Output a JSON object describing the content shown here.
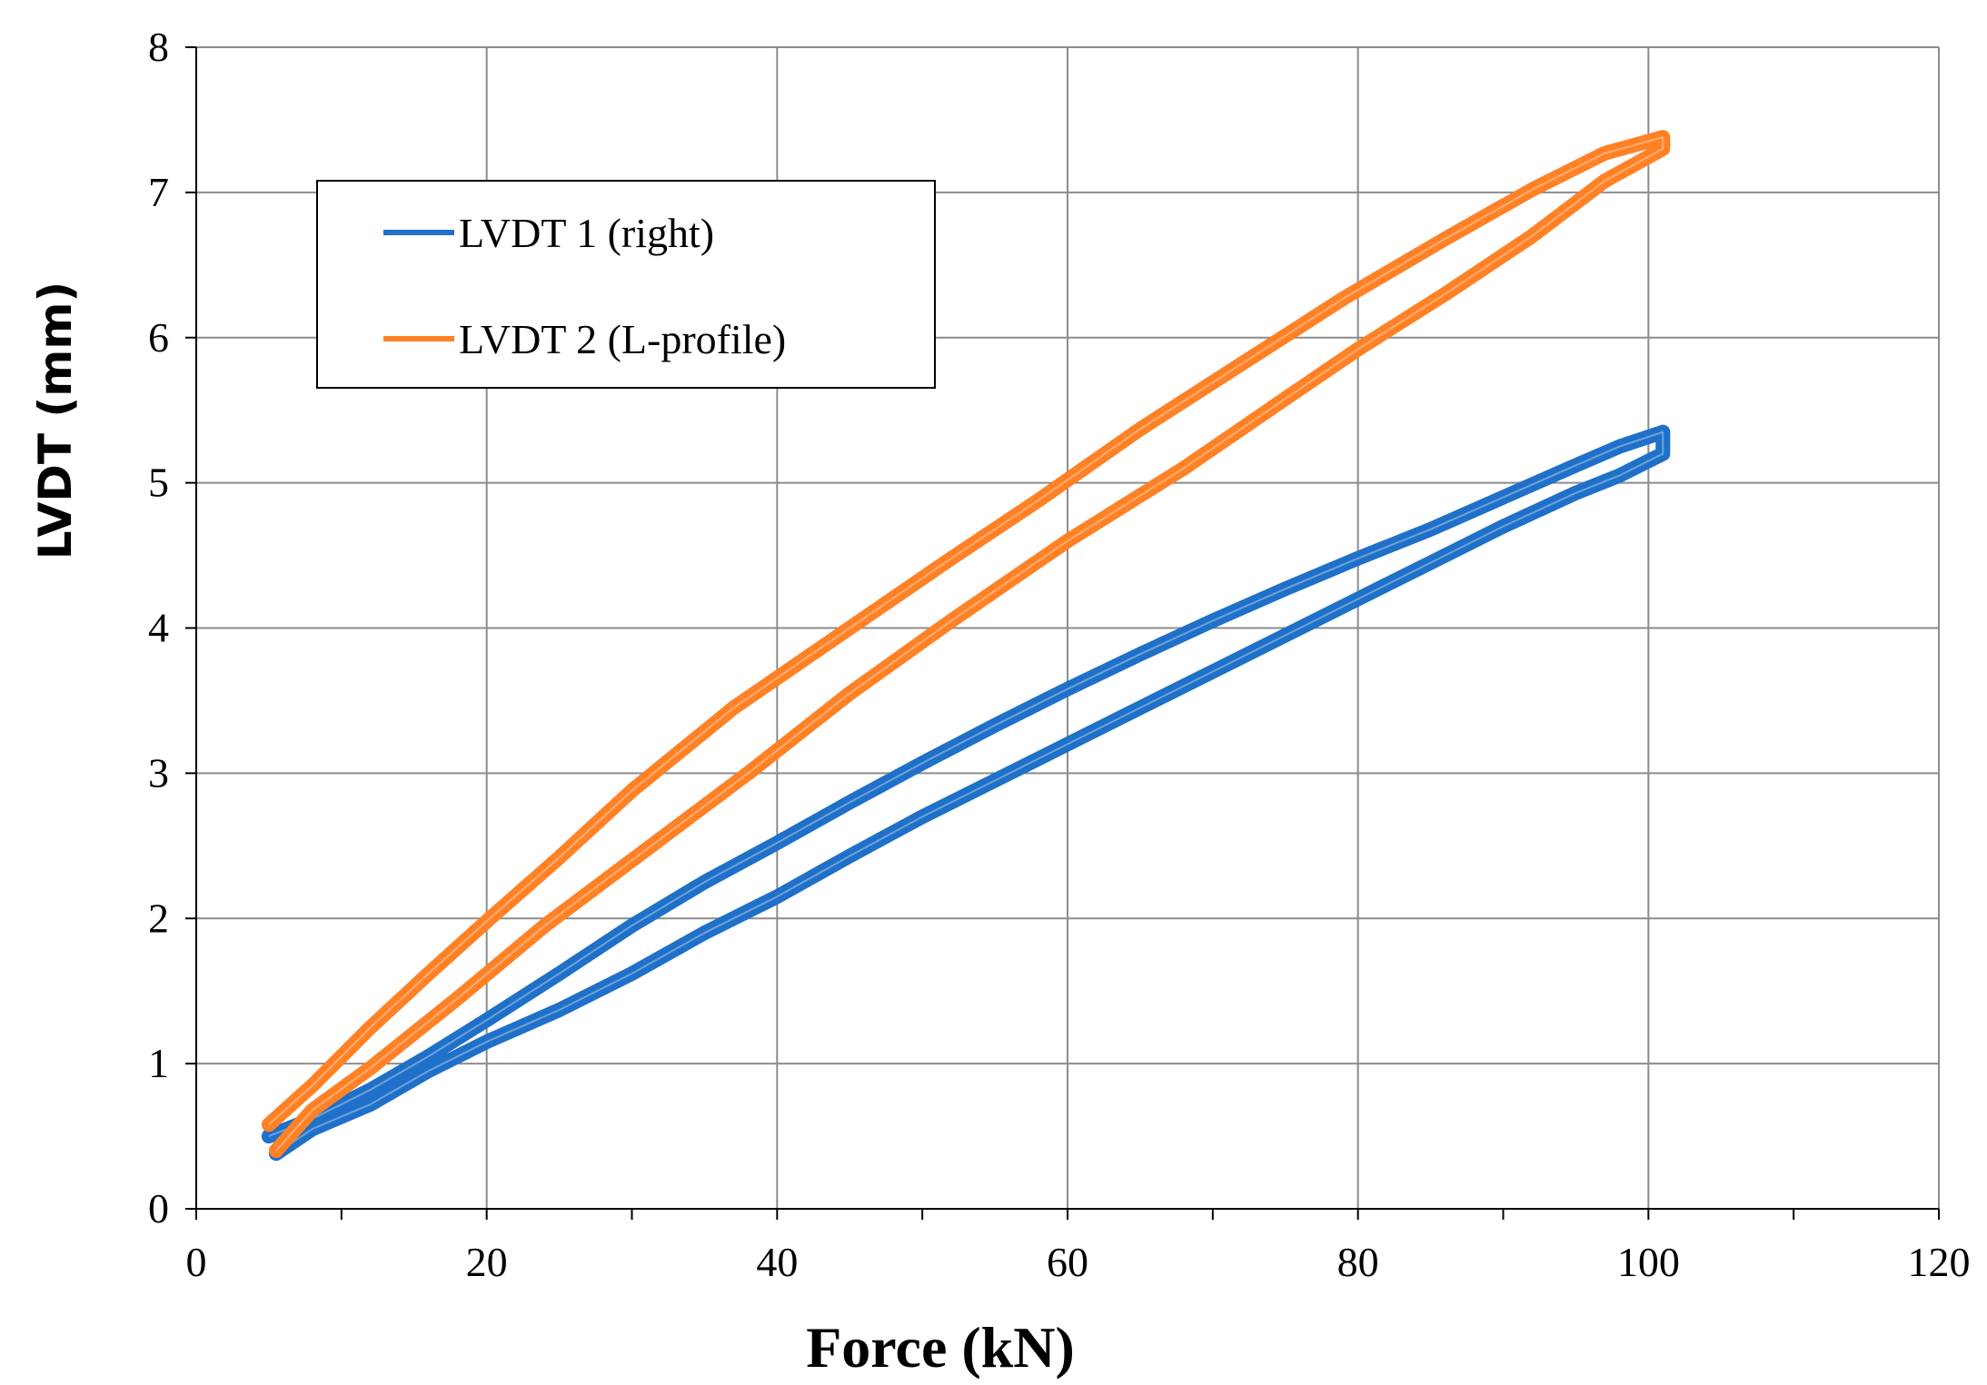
{
  "chart_data": {
    "type": "line",
    "title": "",
    "xlabel": "Force (kN)",
    "ylabel": "LVDT  (mm)",
    "xlim": [
      0,
      120
    ],
    "ylim": [
      0,
      8
    ],
    "xticks": [
      0,
      20,
      40,
      60,
      80,
      100,
      120
    ],
    "yticks": [
      0,
      1,
      2,
      3,
      4,
      5,
      6,
      7,
      8
    ],
    "xtick_labels": [
      "0",
      "20",
      "40",
      "60",
      "80",
      "100",
      "120"
    ],
    "ytick_labels": [
      "0",
      "1",
      "2",
      "3",
      "4",
      "5",
      "6",
      "7",
      "8"
    ],
    "grid": true,
    "legend_position": "top-left",
    "series": [
      {
        "name": "LVDT 1 (right)",
        "color": "#1f70c8",
        "x": [
          5,
          8,
          12,
          16,
          20,
          25,
          30,
          35,
          40,
          45,
          50,
          55,
          60,
          65,
          70,
          75,
          80,
          85,
          90,
          95,
          98,
          101,
          101,
          98,
          95,
          90,
          85,
          80,
          75,
          70,
          65,
          60,
          55,
          50,
          45,
          40,
          35,
          30,
          25,
          20,
          16,
          12,
          8,
          5.5
        ],
        "y": [
          0.5,
          0.62,
          0.82,
          1.05,
          1.3,
          1.62,
          1.95,
          2.25,
          2.52,
          2.8,
          3.07,
          3.33,
          3.58,
          3.82,
          4.05,
          4.27,
          4.48,
          4.68,
          4.9,
          5.12,
          5.25,
          5.35,
          5.2,
          5.05,
          4.93,
          4.7,
          4.45,
          4.2,
          3.95,
          3.7,
          3.45,
          3.2,
          2.95,
          2.7,
          2.43,
          2.15,
          1.9,
          1.62,
          1.37,
          1.15,
          0.95,
          0.72,
          0.55,
          0.38
        ]
      },
      {
        "name": "LVDT 2 (L-profile)",
        "color": "#ff8126",
        "x": [
          5,
          8,
          12,
          16,
          20,
          25,
          30,
          37,
          45,
          52,
          58,
          65,
          72,
          79,
          86,
          92,
          97,
          101,
          101,
          97,
          92,
          86,
          80,
          75,
          68,
          60,
          52,
          45,
          38,
          30,
          24,
          18,
          12,
          8,
          5.5
        ],
        "y": [
          0.58,
          0.85,
          1.25,
          1.62,
          1.98,
          2.42,
          2.88,
          3.45,
          4.0,
          4.48,
          4.88,
          5.37,
          5.82,
          6.27,
          6.68,
          7.02,
          7.27,
          7.38,
          7.3,
          7.08,
          6.7,
          6.3,
          5.92,
          5.58,
          5.1,
          4.6,
          4.05,
          3.55,
          3.0,
          2.4,
          1.95,
          1.45,
          0.97,
          0.68,
          0.4
        ]
      }
    ]
  }
}
